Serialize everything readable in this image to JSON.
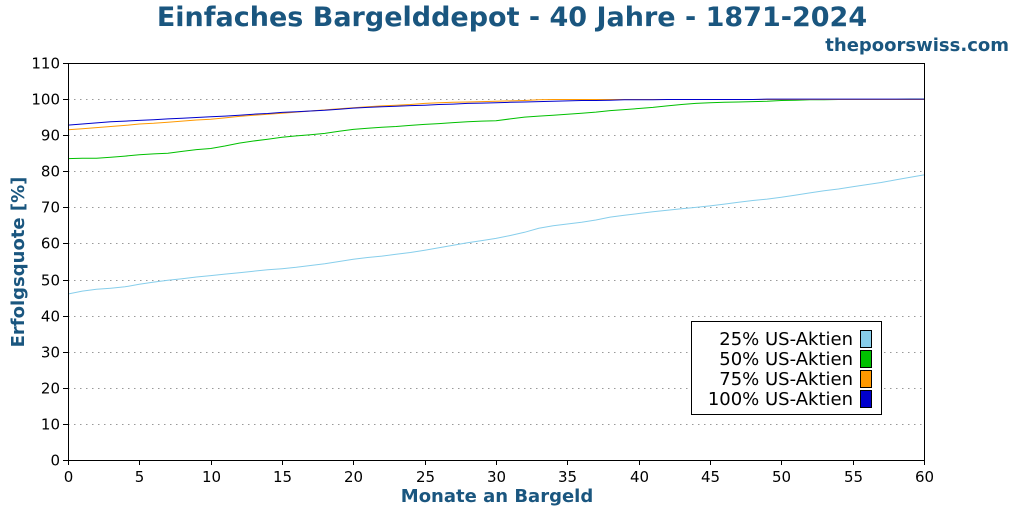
{
  "site": "thepoorswiss.com",
  "chart_data": {
    "type": "line",
    "title": "Einfaches Bargelddepot - 40 Jahre - 1871-2024",
    "xlabel": "Monate an Bargeld",
    "ylabel": "Erfolgsquote [%]",
    "xlim": [
      0,
      60
    ],
    "ylim": [
      0,
      110
    ],
    "xticks": [
      0,
      5,
      10,
      15,
      20,
      25,
      30,
      35,
      40,
      45,
      50,
      55,
      60
    ],
    "yticks": [
      0,
      10,
      20,
      30,
      40,
      50,
      60,
      70,
      80,
      90,
      100,
      110
    ],
    "grid": "horizontal dotted",
    "legend_position": "bottom-right",
    "x": [
      0,
      1,
      2,
      3,
      4,
      5,
      6,
      7,
      8,
      9,
      10,
      11,
      12,
      13,
      14,
      15,
      16,
      17,
      18,
      19,
      20,
      21,
      22,
      23,
      24,
      25,
      26,
      27,
      28,
      29,
      30,
      31,
      32,
      33,
      34,
      35,
      36,
      37,
      38,
      39,
      40,
      41,
      42,
      43,
      44,
      45,
      46,
      47,
      48,
      49,
      50,
      51,
      52,
      53,
      54,
      55,
      56,
      57,
      58,
      59,
      60
    ],
    "series": [
      {
        "name": "25% US-Aktien",
        "color": "#87ceeb",
        "values": [
          46,
          46.8,
          47.3,
          47.6,
          48,
          48.7,
          49.3,
          49.8,
          50.2,
          50.7,
          51.1,
          51.5,
          51.9,
          52.3,
          52.7,
          53,
          53.4,
          53.9,
          54.4,
          55,
          55.6,
          56.1,
          56.5,
          57,
          57.5,
          58.1,
          58.8,
          59.5,
          60.2,
          60.8,
          61.4,
          62.2,
          63.1,
          64.2,
          64.9,
          65.4,
          65.9,
          66.5,
          67.3,
          67.8,
          68.3,
          68.8,
          69.2,
          69.6,
          70,
          70.4,
          70.9,
          71.4,
          71.9,
          72.3,
          72.8,
          73.4,
          74,
          74.6,
          75.1,
          75.7,
          76.3,
          76.9,
          77.6,
          78.3,
          79
        ]
      },
      {
        "name": "50% US-Aktien",
        "color": "#00c000",
        "values": [
          83.5,
          83.6,
          83.6,
          83.9,
          84.2,
          84.6,
          84.8,
          85,
          85.5,
          86,
          86.3,
          87,
          87.8,
          88.4,
          88.9,
          89.4,
          89.8,
          90.1,
          90.5,
          91.1,
          91.6,
          91.9,
          92.2,
          92.4,
          92.7,
          93,
          93.2,
          93.5,
          93.7,
          93.9,
          94,
          94.5,
          95,
          95.3,
          95.5,
          95.8,
          96.1,
          96.4,
          96.8,
          97.1,
          97.4,
          97.7,
          98.1,
          98.5,
          98.8,
          99,
          99.1,
          99.2,
          99.3,
          99.4,
          99.6,
          99.7,
          99.8,
          99.8,
          99.9,
          99.9,
          99.9,
          99.9,
          99.9,
          100,
          100
        ]
      },
      {
        "name": "75% US-Aktien",
        "color": "#ff9900",
        "values": [
          91.5,
          91.8,
          92.1,
          92.4,
          92.7,
          93.1,
          93.3,
          93.6,
          93.9,
          94.2,
          94.4,
          94.8,
          95.2,
          95.5,
          95.8,
          96.1,
          96.4,
          96.7,
          97,
          97.3,
          97.6,
          97.9,
          98.1,
          98.3,
          98.5,
          98.8,
          99,
          99.1,
          99.2,
          99.3,
          99.4,
          99.5,
          99.6,
          99.8,
          99.9,
          99.9,
          99.9,
          99.9,
          99.9,
          99.9,
          99.9,
          99.9,
          99.9,
          99.9,
          99.9,
          99.9,
          99.9,
          99.9,
          99.9,
          99.9,
          99.9,
          99.9,
          99.9,
          99.9,
          99.9,
          99.9,
          99.9,
          99.9,
          99.9,
          99.9,
          99.9
        ]
      },
      {
        "name": "100% US-Aktien",
        "color": "#0000cd",
        "values": [
          92.8,
          93.1,
          93.4,
          93.7,
          93.9,
          94.1,
          94.3,
          94.5,
          94.7,
          94.9,
          95.1,
          95.3,
          95.5,
          95.8,
          96,
          96.3,
          96.5,
          96.7,
          96.9,
          97.2,
          97.5,
          97.7,
          97.9,
          98,
          98.2,
          98.3,
          98.5,
          98.6,
          98.8,
          98.9,
          99,
          99.1,
          99.2,
          99.3,
          99.4,
          99.5,
          99.6,
          99.6,
          99.7,
          99.8,
          99.8,
          99.8,
          99.9,
          99.9,
          99.9,
          99.9,
          99.9,
          99.9,
          99.9,
          100,
          100,
          100,
          100,
          100,
          100,
          100,
          100,
          100,
          100,
          100,
          100
        ]
      }
    ]
  }
}
